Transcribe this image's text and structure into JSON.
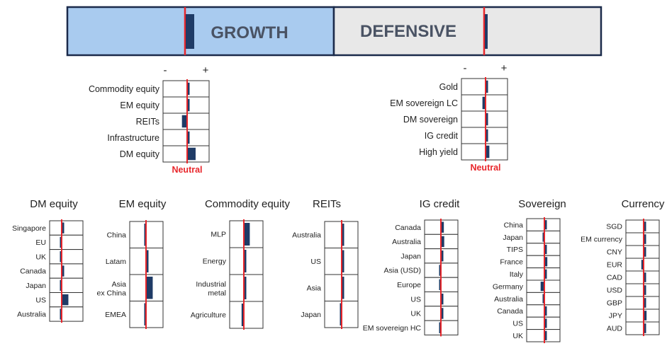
{
  "colors": {
    "growth_fill": "#a9cbef",
    "defensive_fill": "#e8e8e8",
    "border": "#1b2a4a",
    "bar": "#1f3b66",
    "neutral_line": "#e8262b",
    "header_text": "#4a5364"
  },
  "banner": {
    "growth_label": "GROWTH",
    "defensive_label": "DEFENSIVE",
    "growth_position": 0.5,
    "defensive_position": 0.5
  },
  "chart_data": [
    {
      "type": "bar",
      "title": "",
      "minus_label": "-",
      "plus_label": "+",
      "neutral_label": "Neutral",
      "categories": [
        "Commodity equity",
        "EM equity",
        "REITs",
        "Infrastructure",
        "DM equity"
      ],
      "values": [
        0,
        0,
        -0.5,
        0,
        0.75
      ],
      "xlim": [
        -2,
        2
      ]
    },
    {
      "type": "bar",
      "title": "",
      "minus_label": "-",
      "plus_label": "+",
      "neutral_label": "Neutral",
      "categories": [
        "Gold",
        "EM sovereign LC",
        "DM sovereign",
        "IG credit",
        "High yield"
      ],
      "values": [
        0,
        -0.3,
        0,
        0,
        0.3
      ],
      "xlim": [
        -2,
        2
      ]
    },
    {
      "type": "bar",
      "title": "DM equity",
      "categories": [
        "Singapore",
        "EU",
        "UK",
        "Canada",
        "Japan",
        "US",
        "Australia"
      ],
      "values": [
        0,
        -0.1,
        -0.1,
        0,
        -0.1,
        0.8,
        -0.1
      ],
      "xlim": [
        -2,
        2
      ]
    },
    {
      "type": "bar",
      "title": "EM equity",
      "categories": [
        "China",
        "Latam",
        "Asia ex China",
        "EMEA"
      ],
      "values": [
        -0.1,
        0,
        0.8,
        -0.1
      ],
      "xlim": [
        -2,
        2
      ]
    },
    {
      "type": "bar",
      "title": "Commodity equity",
      "categories": [
        "MLP",
        "Energy",
        "Industrial metal",
        "Agriculture"
      ],
      "values": [
        0.7,
        0,
        0,
        -0.3
      ],
      "xlim": [
        -2,
        2
      ]
    },
    {
      "type": "bar",
      "title": "REITs",
      "categories": [
        "Australia",
        "US",
        "Asia",
        "Japan"
      ],
      "values": [
        0,
        0.1,
        0,
        -0.1
      ],
      "xlim": [
        -2,
        2
      ]
    },
    {
      "type": "bar",
      "title": "IG credit",
      "categories": [
        "Canada",
        "Australia",
        "Japan",
        "Asia (USD)",
        "Europe",
        "US",
        "UK",
        "EM sovereign HC"
      ],
      "values": [
        0.3,
        0.35,
        0,
        -0.2,
        -0.2,
        0,
        0.15,
        -0.1
      ],
      "xlim": [
        -2,
        2
      ]
    },
    {
      "type": "bar",
      "title": "Sovereign",
      "categories": [
        "China",
        "Japan",
        "TIPS",
        "France",
        "Italy",
        "Germany",
        "Australia",
        "Canada",
        "US",
        "UK"
      ],
      "values": [
        0,
        -0.2,
        0,
        0.3,
        0,
        -0.5,
        -0.1,
        0,
        0.2,
        0.2
      ],
      "xlim": [
        -2,
        2
      ]
    },
    {
      "type": "bar",
      "title": "Currency",
      "categories": [
        "SGD",
        "EM currency",
        "CNY",
        "EUR",
        "CAD",
        "USD",
        "GBP",
        "JPY",
        "AUD"
      ],
      "values": [
        0,
        0,
        0,
        -0.3,
        0,
        0,
        0,
        0.3,
        0
      ],
      "xlim": [
        -2,
        2
      ]
    }
  ]
}
